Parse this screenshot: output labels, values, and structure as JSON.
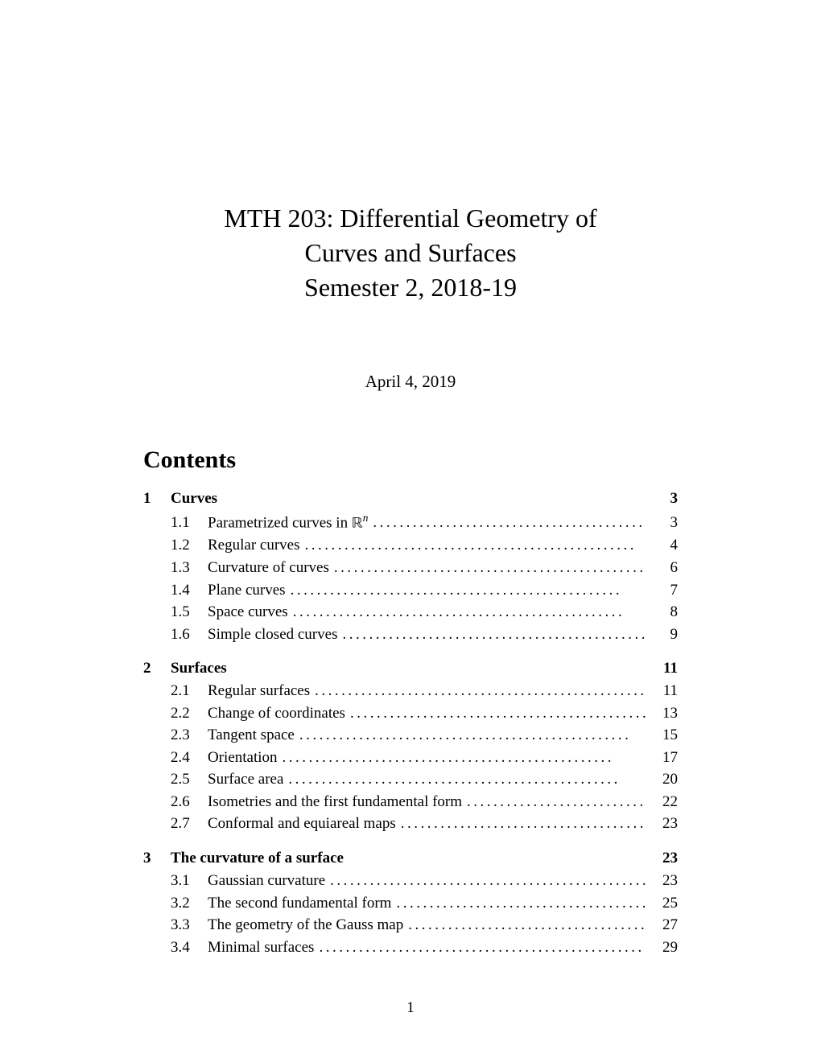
{
  "title": {
    "line1": "MTH 203: Differential Geometry of",
    "line2": "Curves and Surfaces",
    "line3": "Semester 2, 2018-19"
  },
  "date": "April 4, 2019",
  "contents_heading": "Contents",
  "page_number": "1",
  "dot_leader": "..................................................",
  "toc": [
    {
      "num": "1",
      "title": "Curves",
      "page": "3",
      "entries": [
        {
          "num": "1.1",
          "title": "Parametrized curves in ",
          "title_math": "ℝ",
          "title_sup": "n",
          "page": "3"
        },
        {
          "num": "1.2",
          "title": "Regular curves",
          "page": "4"
        },
        {
          "num": "1.3",
          "title": "Curvature of curves",
          "page": "6"
        },
        {
          "num": "1.4",
          "title": "Plane curves",
          "page": "7"
        },
        {
          "num": "1.5",
          "title": "Space curves",
          "page": "8"
        },
        {
          "num": "1.6",
          "title": "Simple closed curves",
          "page": "9"
        }
      ]
    },
    {
      "num": "2",
      "title": "Surfaces",
      "page": "11",
      "entries": [
        {
          "num": "2.1",
          "title": "Regular surfaces",
          "page": "11"
        },
        {
          "num": "2.2",
          "title": "Change of coordinates",
          "page": "13"
        },
        {
          "num": "2.3",
          "title": "Tangent space",
          "page": "15"
        },
        {
          "num": "2.4",
          "title": "Orientation",
          "page": "17"
        },
        {
          "num": "2.5",
          "title": "Surface area",
          "page": "20"
        },
        {
          "num": "2.6",
          "title": "Isometries and the first fundamental form",
          "page": "22"
        },
        {
          "num": "2.7",
          "title": "Conformal and equiareal maps",
          "page": "23"
        }
      ]
    },
    {
      "num": "3",
      "title": "The curvature of a surface",
      "page": "23",
      "entries": [
        {
          "num": "3.1",
          "title": "Gaussian curvature",
          "page": "23"
        },
        {
          "num": "3.2",
          "title": "The second fundamental form",
          "page": "25"
        },
        {
          "num": "3.3",
          "title": "The geometry of the Gauss map",
          "page": "27"
        },
        {
          "num": "3.4",
          "title": "Minimal surfaces",
          "page": "29"
        }
      ]
    }
  ]
}
